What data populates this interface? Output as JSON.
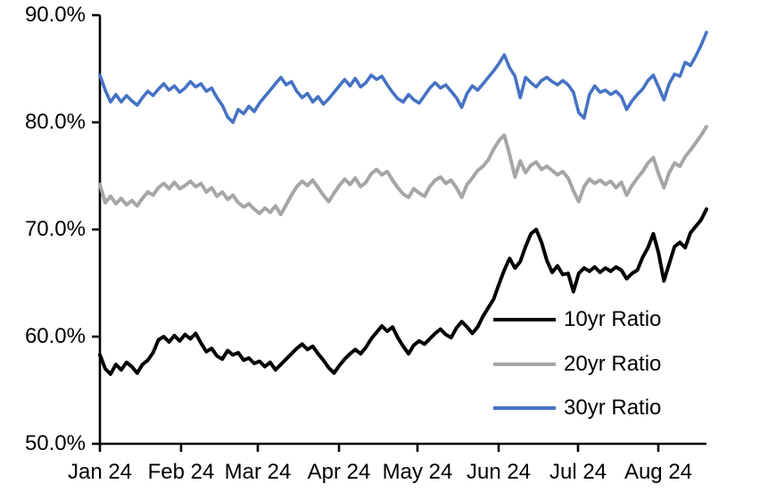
{
  "chart_data": {
    "type": "line",
    "y_axis": {
      "min": 50,
      "max": 90,
      "unit": "%",
      "tick_labels": [
        "90.0%",
        "80.0%",
        "70.0%",
        "60.0%",
        "50.0%"
      ]
    },
    "x_axis": {
      "tick_labels": [
        "Jan 24",
        "Feb 24",
        "Mar 24",
        "Apr 24",
        "May 24",
        "Jun 24",
        "Jul 24",
        "Aug 24"
      ]
    },
    "legend": {
      "position": "inside-lower-right"
    },
    "series": [
      {
        "name": "10yr Ratio",
        "color": "#000000",
        "values": [
          58.3,
          57.0,
          56.5,
          57.4,
          56.9,
          57.6,
          57.2,
          56.6,
          57.4,
          57.8,
          58.5,
          59.7,
          60.0,
          59.5,
          60.1,
          59.6,
          60.2,
          59.8,
          60.3,
          59.4,
          58.6,
          58.9,
          58.2,
          57.9,
          58.7,
          58.3,
          58.5,
          57.8,
          58.0,
          57.5,
          57.7,
          57.2,
          57.6,
          56.9,
          57.4,
          57.9,
          58.4,
          58.9,
          59.3,
          58.8,
          59.1,
          58.4,
          57.8,
          57.1,
          56.6,
          57.3,
          57.9,
          58.4,
          58.8,
          58.4,
          59.0,
          59.8,
          60.4,
          61.0,
          60.5,
          60.9,
          59.9,
          59.1,
          58.4,
          59.2,
          59.6,
          59.3,
          59.8,
          60.3,
          60.7,
          60.2,
          59.9,
          60.8,
          61.4,
          60.9,
          60.3,
          60.9,
          61.9,
          62.7,
          63.5,
          64.9,
          66.2,
          67.3,
          66.4,
          67.0,
          68.4,
          69.6,
          70.0,
          68.8,
          67.1,
          66.0,
          66.6,
          65.8,
          65.9,
          64.2,
          65.9,
          66.4,
          66.1,
          66.5,
          66.0,
          66.4,
          66.1,
          66.5,
          66.2,
          65.4,
          65.9,
          66.2,
          67.4,
          68.3,
          69.6,
          67.8,
          65.2,
          66.8,
          68.4,
          68.8,
          68.3,
          69.7,
          70.3,
          70.9,
          71.9
        ]
      },
      {
        "name": "20yr Ratio",
        "color": "#A6A6A6",
        "values": [
          74.2,
          72.5,
          73.1,
          72.4,
          72.9,
          72.3,
          72.7,
          72.2,
          72.9,
          73.5,
          73.2,
          73.9,
          74.3,
          73.8,
          74.4,
          73.8,
          74.1,
          74.5,
          74.0,
          74.3,
          73.5,
          73.9,
          73.1,
          73.5,
          72.8,
          73.2,
          72.5,
          72.1,
          72.4,
          71.9,
          71.5,
          72.0,
          71.6,
          72.2,
          71.4,
          72.3,
          73.2,
          74.0,
          74.5,
          74.1,
          74.6,
          73.9,
          73.2,
          72.6,
          73.4,
          74.1,
          74.7,
          74.2,
          74.8,
          74.0,
          74.4,
          75.2,
          75.6,
          75.1,
          75.4,
          74.6,
          73.9,
          73.3,
          73.0,
          73.8,
          73.4,
          73.1,
          74.0,
          74.6,
          74.9,
          74.3,
          74.6,
          73.9,
          73.0,
          74.2,
          74.8,
          75.5,
          75.9,
          76.5,
          77.5,
          78.3,
          78.8,
          77.0,
          74.9,
          76.4,
          75.3,
          76.0,
          76.3,
          75.6,
          75.9,
          75.5,
          75.1,
          75.4,
          74.8,
          73.6,
          72.6,
          74.0,
          74.7,
          74.3,
          74.6,
          74.2,
          74.5,
          73.9,
          74.4,
          73.2,
          74.1,
          74.8,
          75.4,
          76.2,
          76.7,
          75.2,
          73.9,
          75.3,
          76.2,
          75.9,
          76.8,
          77.4,
          78.1,
          78.8,
          79.6
        ]
      },
      {
        "name": "30yr Ratio",
        "color": "#4472C4",
        "values": [
          84.4,
          83.0,
          81.9,
          82.6,
          81.9,
          82.5,
          82.0,
          81.6,
          82.3,
          82.9,
          82.5,
          83.1,
          83.6,
          83.0,
          83.4,
          82.8,
          83.2,
          83.8,
          83.3,
          83.6,
          82.9,
          83.2,
          82.3,
          81.6,
          80.5,
          80.0,
          81.2,
          80.8,
          81.5,
          81.0,
          81.8,
          82.4,
          83.0,
          83.6,
          84.2,
          83.5,
          83.8,
          82.9,
          82.3,
          82.7,
          81.9,
          82.4,
          81.7,
          82.2,
          82.8,
          83.4,
          84.0,
          83.4,
          84.1,
          83.3,
          83.7,
          84.4,
          84.0,
          84.3,
          83.5,
          82.8,
          82.2,
          81.9,
          82.6,
          82.1,
          81.8,
          82.5,
          83.2,
          83.7,
          83.2,
          83.5,
          82.9,
          82.3,
          81.4,
          82.7,
          83.4,
          83.0,
          83.6,
          84.2,
          84.8,
          85.5,
          86.3,
          85.1,
          84.3,
          82.3,
          84.2,
          83.7,
          83.3,
          83.9,
          84.2,
          83.8,
          83.5,
          83.9,
          83.5,
          82.8,
          80.9,
          80.4,
          82.6,
          83.4,
          82.8,
          83.0,
          82.6,
          82.9,
          82.4,
          81.2,
          82.0,
          82.6,
          83.1,
          83.9,
          84.4,
          83.3,
          82.1,
          83.6,
          84.5,
          84.3,
          85.6,
          85.3,
          86.2,
          87.2,
          88.4
        ]
      }
    ]
  }
}
